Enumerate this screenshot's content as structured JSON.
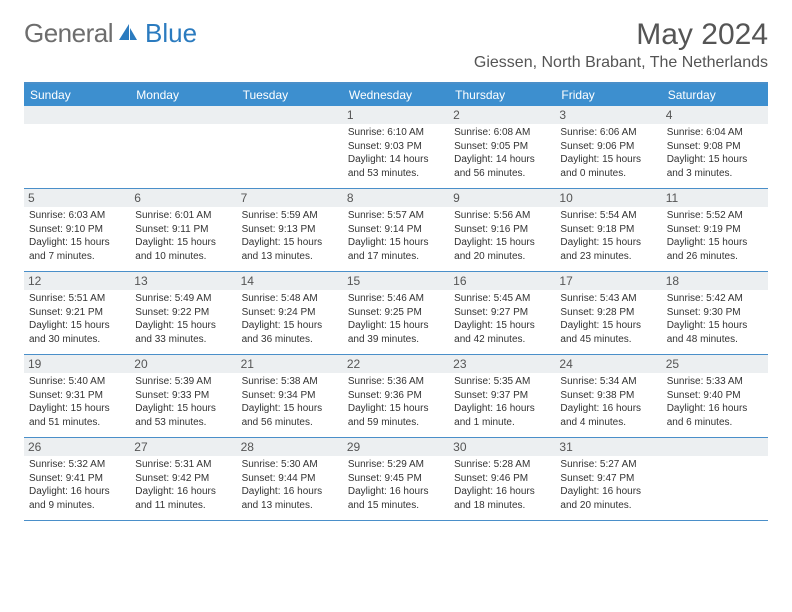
{
  "brand": {
    "part1": "General",
    "part2": "Blue"
  },
  "header": {
    "title": "May 2024",
    "location": "Giessen, North Brabant, The Netherlands"
  },
  "colors": {
    "header_bar": "#3d8fcf",
    "divider": "#4a8fc9",
    "daynum_bg": "#eceff1",
    "text": "#333333",
    "muted": "#555555"
  },
  "dayNames": [
    "Sunday",
    "Monday",
    "Tuesday",
    "Wednesday",
    "Thursday",
    "Friday",
    "Saturday"
  ],
  "weeks": [
    [
      {
        "n": "",
        "sr": "",
        "ss": "",
        "dl": ""
      },
      {
        "n": "",
        "sr": "",
        "ss": "",
        "dl": ""
      },
      {
        "n": "",
        "sr": "",
        "ss": "",
        "dl": ""
      },
      {
        "n": "1",
        "sr": "Sunrise: 6:10 AM",
        "ss": "Sunset: 9:03 PM",
        "dl": "Daylight: 14 hours and 53 minutes."
      },
      {
        "n": "2",
        "sr": "Sunrise: 6:08 AM",
        "ss": "Sunset: 9:05 PM",
        "dl": "Daylight: 14 hours and 56 minutes."
      },
      {
        "n": "3",
        "sr": "Sunrise: 6:06 AM",
        "ss": "Sunset: 9:06 PM",
        "dl": "Daylight: 15 hours and 0 minutes."
      },
      {
        "n": "4",
        "sr": "Sunrise: 6:04 AM",
        "ss": "Sunset: 9:08 PM",
        "dl": "Daylight: 15 hours and 3 minutes."
      }
    ],
    [
      {
        "n": "5",
        "sr": "Sunrise: 6:03 AM",
        "ss": "Sunset: 9:10 PM",
        "dl": "Daylight: 15 hours and 7 minutes."
      },
      {
        "n": "6",
        "sr": "Sunrise: 6:01 AM",
        "ss": "Sunset: 9:11 PM",
        "dl": "Daylight: 15 hours and 10 minutes."
      },
      {
        "n": "7",
        "sr": "Sunrise: 5:59 AM",
        "ss": "Sunset: 9:13 PM",
        "dl": "Daylight: 15 hours and 13 minutes."
      },
      {
        "n": "8",
        "sr": "Sunrise: 5:57 AM",
        "ss": "Sunset: 9:14 PM",
        "dl": "Daylight: 15 hours and 17 minutes."
      },
      {
        "n": "9",
        "sr": "Sunrise: 5:56 AM",
        "ss": "Sunset: 9:16 PM",
        "dl": "Daylight: 15 hours and 20 minutes."
      },
      {
        "n": "10",
        "sr": "Sunrise: 5:54 AM",
        "ss": "Sunset: 9:18 PM",
        "dl": "Daylight: 15 hours and 23 minutes."
      },
      {
        "n": "11",
        "sr": "Sunrise: 5:52 AM",
        "ss": "Sunset: 9:19 PM",
        "dl": "Daylight: 15 hours and 26 minutes."
      }
    ],
    [
      {
        "n": "12",
        "sr": "Sunrise: 5:51 AM",
        "ss": "Sunset: 9:21 PM",
        "dl": "Daylight: 15 hours and 30 minutes."
      },
      {
        "n": "13",
        "sr": "Sunrise: 5:49 AM",
        "ss": "Sunset: 9:22 PM",
        "dl": "Daylight: 15 hours and 33 minutes."
      },
      {
        "n": "14",
        "sr": "Sunrise: 5:48 AM",
        "ss": "Sunset: 9:24 PM",
        "dl": "Daylight: 15 hours and 36 minutes."
      },
      {
        "n": "15",
        "sr": "Sunrise: 5:46 AM",
        "ss": "Sunset: 9:25 PM",
        "dl": "Daylight: 15 hours and 39 minutes."
      },
      {
        "n": "16",
        "sr": "Sunrise: 5:45 AM",
        "ss": "Sunset: 9:27 PM",
        "dl": "Daylight: 15 hours and 42 minutes."
      },
      {
        "n": "17",
        "sr": "Sunrise: 5:43 AM",
        "ss": "Sunset: 9:28 PM",
        "dl": "Daylight: 15 hours and 45 minutes."
      },
      {
        "n": "18",
        "sr": "Sunrise: 5:42 AM",
        "ss": "Sunset: 9:30 PM",
        "dl": "Daylight: 15 hours and 48 minutes."
      }
    ],
    [
      {
        "n": "19",
        "sr": "Sunrise: 5:40 AM",
        "ss": "Sunset: 9:31 PM",
        "dl": "Daylight: 15 hours and 51 minutes."
      },
      {
        "n": "20",
        "sr": "Sunrise: 5:39 AM",
        "ss": "Sunset: 9:33 PM",
        "dl": "Daylight: 15 hours and 53 minutes."
      },
      {
        "n": "21",
        "sr": "Sunrise: 5:38 AM",
        "ss": "Sunset: 9:34 PM",
        "dl": "Daylight: 15 hours and 56 minutes."
      },
      {
        "n": "22",
        "sr": "Sunrise: 5:36 AM",
        "ss": "Sunset: 9:36 PM",
        "dl": "Daylight: 15 hours and 59 minutes."
      },
      {
        "n": "23",
        "sr": "Sunrise: 5:35 AM",
        "ss": "Sunset: 9:37 PM",
        "dl": "Daylight: 16 hours and 1 minute."
      },
      {
        "n": "24",
        "sr": "Sunrise: 5:34 AM",
        "ss": "Sunset: 9:38 PM",
        "dl": "Daylight: 16 hours and 4 minutes."
      },
      {
        "n": "25",
        "sr": "Sunrise: 5:33 AM",
        "ss": "Sunset: 9:40 PM",
        "dl": "Daylight: 16 hours and 6 minutes."
      }
    ],
    [
      {
        "n": "26",
        "sr": "Sunrise: 5:32 AM",
        "ss": "Sunset: 9:41 PM",
        "dl": "Daylight: 16 hours and 9 minutes."
      },
      {
        "n": "27",
        "sr": "Sunrise: 5:31 AM",
        "ss": "Sunset: 9:42 PM",
        "dl": "Daylight: 16 hours and 11 minutes."
      },
      {
        "n": "28",
        "sr": "Sunrise: 5:30 AM",
        "ss": "Sunset: 9:44 PM",
        "dl": "Daylight: 16 hours and 13 minutes."
      },
      {
        "n": "29",
        "sr": "Sunrise: 5:29 AM",
        "ss": "Sunset: 9:45 PM",
        "dl": "Daylight: 16 hours and 15 minutes."
      },
      {
        "n": "30",
        "sr": "Sunrise: 5:28 AM",
        "ss": "Sunset: 9:46 PM",
        "dl": "Daylight: 16 hours and 18 minutes."
      },
      {
        "n": "31",
        "sr": "Sunrise: 5:27 AM",
        "ss": "Sunset: 9:47 PM",
        "dl": "Daylight: 16 hours and 20 minutes."
      },
      {
        "n": "",
        "sr": "",
        "ss": "",
        "dl": ""
      }
    ]
  ]
}
